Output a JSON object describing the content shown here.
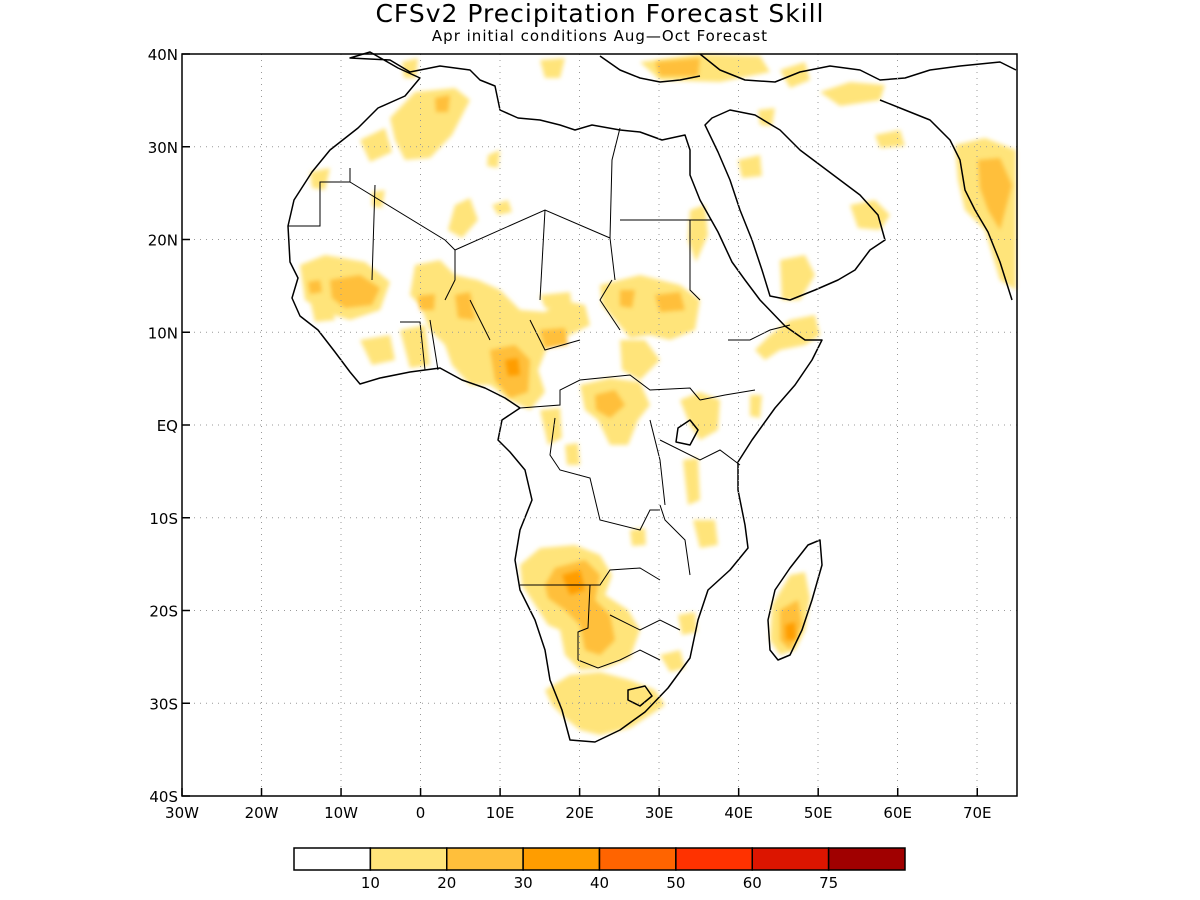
{
  "header": {
    "title": "CFSv2 Precipitation Forecast Skill",
    "subtitle": "Apr initial conditions  Aug—Oct Forecast"
  },
  "axes": {
    "lon_labels": [
      "30W",
      "20W",
      "10W",
      "0",
      "10E",
      "20E",
      "30E",
      "40E",
      "50E",
      "60E",
      "70E"
    ],
    "lon_values": [
      -30,
      -20,
      -10,
      0,
      10,
      20,
      30,
      40,
      50,
      60,
      70
    ],
    "lat_labels": [
      "40N",
      "30N",
      "20N",
      "10N",
      "EQ",
      "10S",
      "20S",
      "30S",
      "40S"
    ],
    "lat_values": [
      40,
      30,
      20,
      10,
      0,
      -10,
      -20,
      -30,
      -40
    ],
    "lon_range": [
      -30,
      75
    ],
    "lat_range": [
      -40,
      40
    ],
    "grid": "dotted"
  },
  "legend": {
    "labels": [
      "10",
      "20",
      "30",
      "40",
      "50",
      "60",
      "75"
    ],
    "colors": [
      "#ffffff",
      "#ffe47a",
      "#ffbf3b",
      "#ff9d00",
      "#ff6400",
      "#ff3200",
      "#dc1500",
      "#a00000"
    ]
  }
}
